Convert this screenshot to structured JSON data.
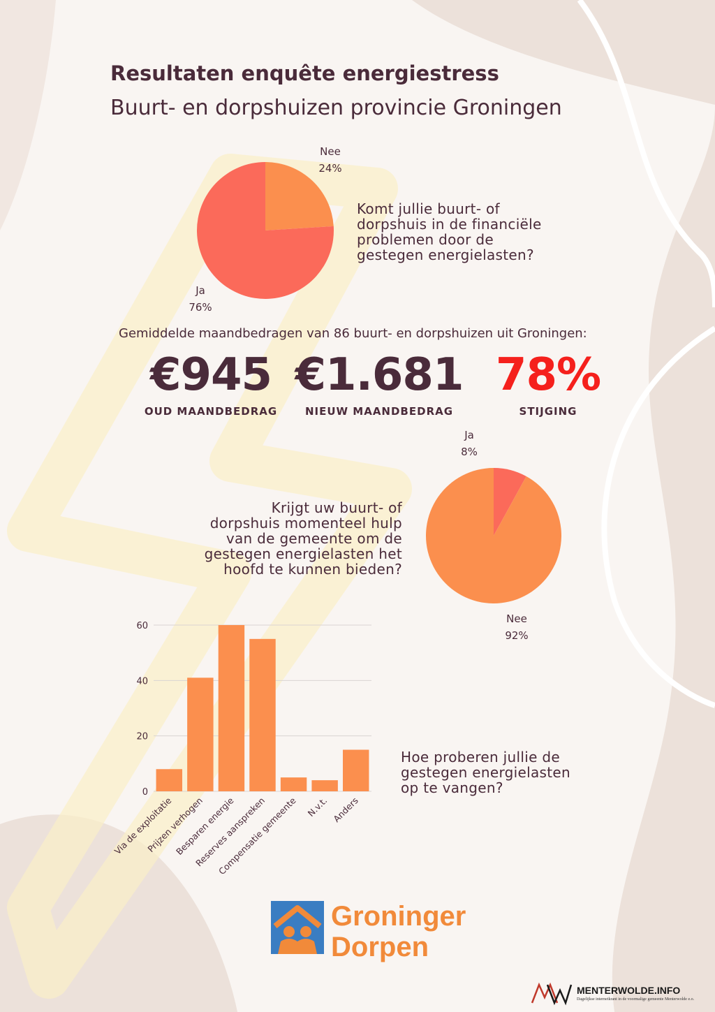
{
  "header": {
    "title": "Resultaten enquête energiestress",
    "subtitle": "Buurt- en dorpshuizen provincie Groningen"
  },
  "q1": {
    "question_lines": [
      "Komt jullie buurt- of",
      "dorpshuis in de financiële",
      "problemen door de",
      "gestegen energielasten?"
    ],
    "slices": [
      {
        "label": "Nee",
        "pct_text": "24%",
        "value": 24,
        "color": "#fb8f4e"
      },
      {
        "label": "Ja",
        "pct_text": "76%",
        "value": 76,
        "color": "#fb6a5a"
      }
    ]
  },
  "stats": {
    "intro": "Gemiddelde maandbedragen van 86 buurt- en dorpshuizen uit Groningen:",
    "items": [
      {
        "value": "€945",
        "caption": "OUD MAANDBEDRAG",
        "color": "#4a2b3a"
      },
      {
        "value": "€1.681",
        "caption": "NIEUW MAANDBEDRAG",
        "color": "#4a2b3a"
      },
      {
        "value": "78%",
        "caption": "STIJGING",
        "color": "#f5201c"
      }
    ]
  },
  "q2": {
    "question_lines": [
      "Krijgt uw buurt- of",
      "dorpshuis momenteel hulp",
      "van de gemeente om de",
      "gestegen energielasten het",
      "hoofd te kunnen bieden?"
    ],
    "slices": [
      {
        "label": "Ja",
        "pct_text": "8%",
        "value": 8,
        "color": "#fb6a5a"
      },
      {
        "label": "Nee",
        "pct_text": "92%",
        "value": 92,
        "color": "#fb8f4e"
      }
    ]
  },
  "q3": {
    "question_lines": [
      "Hoe proberen jullie de",
      "gestegen energielasten",
      "op te vangen?"
    ]
  },
  "chart_data": [
    {
      "type": "pie",
      "categories": [
        "Nee",
        "Ja"
      ],
      "values": [
        24,
        76
      ],
      "labels": [
        "24%",
        "76%"
      ]
    },
    {
      "type": "pie",
      "categories": [
        "Ja",
        "Nee"
      ],
      "values": [
        8,
        92
      ],
      "labels": [
        "8%",
        "92%"
      ]
    },
    {
      "type": "bar",
      "categories": [
        "Via de exploitatie",
        "Prijzen verhogen",
        "Besparen energie",
        "Reserves aanspreken",
        "Compensatie gemeente",
        "N.v.t.",
        "Anders"
      ],
      "values": [
        8,
        41,
        60,
        55,
        5,
        4,
        15
      ],
      "ylim": [
        0,
        60
      ],
      "yticks": [
        0,
        20,
        40,
        60
      ],
      "grid": true,
      "color": "#fb8f4e"
    }
  ],
  "logos": {
    "groninger_line1": "Groninger",
    "groninger_line2": "Dorpen",
    "mw_name": "MENTERWOLDE.INFO",
    "mw_sub": "Dagelijkse internetkrant in de voormalige gemeente Menterwolde e.o."
  }
}
